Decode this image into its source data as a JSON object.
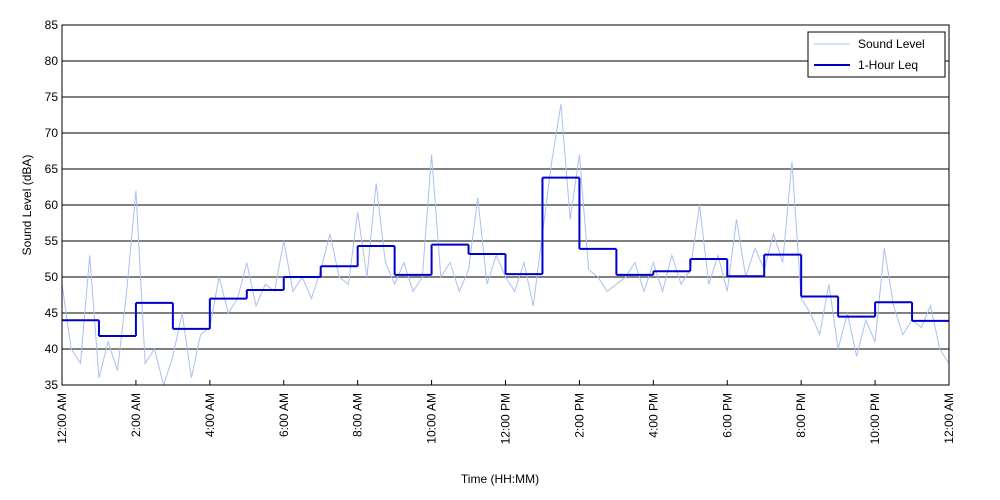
{
  "chart_data": {
    "type": "line",
    "xlabel": "Time (HH:MM)",
    "ylabel": "Sound Level (dBA)",
    "xlim": [
      0,
      24
    ],
    "ylim": [
      35,
      85
    ],
    "xticks": [
      {
        "value": 0,
        "label": "12:00 AM"
      },
      {
        "value": 2,
        "label": "2:00 AM"
      },
      {
        "value": 4,
        "label": "4:00 AM"
      },
      {
        "value": 6,
        "label": "6:00 AM"
      },
      {
        "value": 8,
        "label": "8:00 AM"
      },
      {
        "value": 10,
        "label": "10:00 AM"
      },
      {
        "value": 12,
        "label": "12:00 PM"
      },
      {
        "value": 14,
        "label": "2:00 PM"
      },
      {
        "value": 16,
        "label": "4:00 PM"
      },
      {
        "value": 18,
        "label": "6:00 PM"
      },
      {
        "value": 20,
        "label": "8:00 PM"
      },
      {
        "value": 22,
        "label": "10:00 PM"
      },
      {
        "value": 24,
        "label": "12:00 AM"
      }
    ],
    "yticks": [
      35,
      40,
      45,
      50,
      55,
      60,
      65,
      70,
      75,
      80,
      85
    ],
    "grid": true,
    "legend": "upper right",
    "series": [
      {
        "name": "Sound Level",
        "color": "#a9c1f2",
        "style": "line",
        "x": [
          0,
          0.25,
          0.5,
          0.75,
          1,
          1.25,
          1.5,
          1.75,
          2,
          2.25,
          2.5,
          2.75,
          3,
          3.25,
          3.5,
          3.75,
          4,
          4.25,
          4.5,
          4.75,
          5,
          5.25,
          5.5,
          5.75,
          6,
          6.25,
          6.5,
          6.75,
          7,
          7.25,
          7.5,
          7.75,
          8,
          8.25,
          8.5,
          8.75,
          9,
          9.25,
          9.5,
          9.75,
          10,
          10.25,
          10.5,
          10.75,
          11,
          11.25,
          11.5,
          11.75,
          12,
          12.25,
          12.5,
          12.75,
          13,
          13.25,
          13.5,
          13.75,
          14,
          14.25,
          14.5,
          14.75,
          15,
          15.25,
          15.5,
          15.75,
          16,
          16.25,
          16.5,
          16.75,
          17,
          17.25,
          17.5,
          17.75,
          18,
          18.25,
          18.5,
          18.75,
          19,
          19.25,
          19.5,
          19.75,
          20,
          20.25,
          20.5,
          20.75,
          21,
          21.25,
          21.5,
          21.75,
          22,
          22.25,
          22.5,
          22.75,
          23,
          23.25,
          23.5,
          23.75,
          24
        ],
        "values": [
          49,
          40,
          38,
          53,
          36,
          41,
          37,
          48,
          62,
          38,
          40,
          35,
          39,
          45,
          36,
          42,
          43,
          50,
          45,
          47,
          52,
          46,
          49,
          48,
          55,
          48,
          50,
          47,
          51,
          56,
          50,
          49,
          59,
          50,
          63,
          52,
          49,
          52,
          48,
          50,
          67,
          50,
          52,
          48,
          51,
          61,
          49,
          53,
          50,
          48,
          52,
          46,
          56,
          66,
          74,
          58,
          67,
          51,
          50,
          48,
          49,
          50,
          52,
          48,
          52,
          48,
          53,
          49,
          51,
          60,
          49,
          53,
          48,
          58,
          50,
          54,
          51,
          56,
          52,
          66,
          47,
          45,
          42,
          49,
          40,
          45,
          39,
          44,
          41,
          54,
          46,
          42,
          44,
          43,
          46,
          40,
          38
        ]
      },
      {
        "name": "1-Hour Leq",
        "color": "#0000cc",
        "style": "step",
        "x": [
          0,
          1,
          2,
          3,
          4,
          5,
          6,
          7,
          8,
          9,
          10,
          11,
          12,
          13,
          14,
          15,
          16,
          17,
          18,
          19,
          20,
          21,
          22,
          23
        ],
        "values": [
          44,
          41.8,
          46.4,
          42.8,
          47,
          48.2,
          50,
          51.5,
          54.3,
          50.3,
          54.5,
          53.2,
          50.4,
          63.8,
          53.9,
          50.3,
          50.8,
          52.5,
          50.1,
          53.1,
          47.3,
          44.5,
          46.5,
          43.9
        ]
      }
    ]
  }
}
